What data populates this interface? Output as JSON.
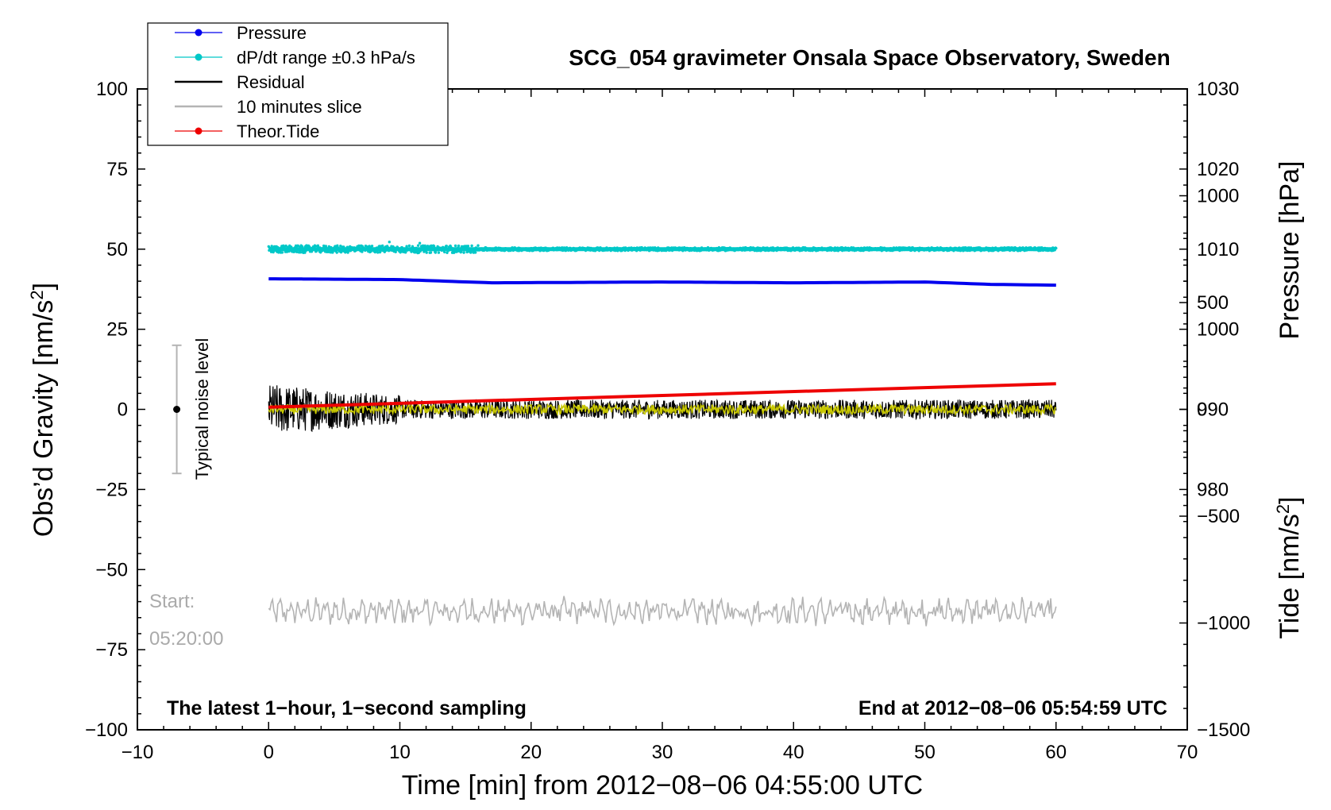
{
  "chart_data": {
    "type": "line",
    "title": "SCG_054 gravimeter Onsala Space Observatory, Sweden",
    "xlabel": "Time [min] from 2012−08−06 04:55:00 UTC",
    "ylabel_left": "Obs’d Gravity [nm/s²]",
    "ylabel_right_pressure": "Pressure [hPa]",
    "ylabel_right_tide": "Tide [nm/s²]",
    "xlim": [
      -10,
      70
    ],
    "ylim": [
      -100,
      100
    ],
    "x_ticks": [
      -10,
      0,
      10,
      20,
      30,
      40,
      50,
      60,
      70
    ],
    "x_tick_labels": [
      "−10",
      "0",
      "10",
      "20",
      "30",
      "40",
      "50",
      "60",
      "70"
    ],
    "y_ticks": [
      -100,
      -75,
      -50,
      -25,
      0,
      25,
      50,
      75,
      100
    ],
    "y_tick_labels": [
      "−100",
      "−75",
      "−50",
      "−25",
      "0",
      "25",
      "50",
      "75",
      "100"
    ],
    "pressure_axis": {
      "range": [
        950,
        1030
      ],
      "ticks": [
        980,
        990,
        1000,
        1010,
        1020,
        1030
      ],
      "tick_labels": [
        "980",
        "990",
        "1000",
        "1010",
        "1020",
        "1030"
      ]
    },
    "tide_axis": {
      "range": [
        -1500,
        1500
      ],
      "ticks": [
        -1500,
        -1000,
        -500,
        0,
        500,
        1000
      ],
      "tick_labels": [
        "−1500",
        "−1000",
        "−500",
        "0",
        "500",
        "1000"
      ]
    },
    "legend": {
      "position": "top-left",
      "entries": [
        {
          "label": "Pressure",
          "color": "#0000ee"
        },
        {
          "label": "dP/dt range ±0.3 hPa/s",
          "color": "#00c8c8"
        },
        {
          "label": "Residual",
          "color": "#000000"
        },
        {
          "label": "10 minutes slice",
          "color": "#b4b4b4"
        },
        {
          "label": "Theor.Tide",
          "color": "#ee0000"
        }
      ]
    },
    "series": [
      {
        "name": "Pressure",
        "axis": "pressure",
        "color": "#0000ee",
        "x": [
          0,
          10,
          17,
          30,
          40,
          50,
          55,
          60
        ],
        "values": [
          1006.3,
          1006.2,
          1005.8,
          1005.9,
          1005.8,
          1005.9,
          1005.6,
          1005.5
        ]
      },
      {
        "name": "dP/dt range ±0.3 hPa/s",
        "axis": "left",
        "color": "#00c8c8",
        "center": 50,
        "spread": 2.5
      },
      {
        "name": "Residual",
        "axis": "left",
        "color": "#000000",
        "center": 0,
        "amplitude_early": 8,
        "amplitude_late": 3
      },
      {
        "name": "Residual (smoothed)",
        "axis": "left",
        "color": "#c8c800",
        "center": 0,
        "amplitude": 1.5
      },
      {
        "name": "10 minutes slice",
        "axis": "left",
        "color": "#b4b4b4",
        "center": -63,
        "amplitude": 4
      },
      {
        "name": "Theor.Tide",
        "axis": "tide",
        "color": "#ee0000",
        "x": [
          0,
          60
        ],
        "values": [
          10,
          120
        ]
      }
    ],
    "annotations": {
      "noise_label": "Typical noise level",
      "noise_range": [
        -20,
        20
      ],
      "start_label": "Start:",
      "start_time": "05:20:00",
      "bottom_left": "The latest 1−hour, 1−second sampling",
      "bottom_right": "End at 2012−08−06 05:54:59 UTC"
    }
  }
}
